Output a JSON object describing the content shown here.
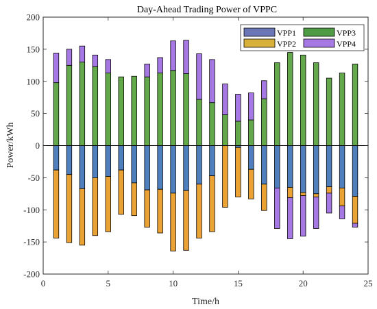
{
  "chart_data": {
    "type": "bar",
    "stacked": true,
    "title": "Day-Ahead Trading Power of VPPC",
    "xlabel": "Time/h",
    "ylabel": "Power/kWh",
    "xlim": [
      0,
      25
    ],
    "ylim": [
      -200,
      200
    ],
    "xticks": [
      0,
      5,
      10,
      15,
      20,
      25
    ],
    "yticks": [
      -200,
      -150,
      -100,
      -50,
      0,
      50,
      100,
      150,
      200
    ],
    "grid": false,
    "legend_position": "top-right",
    "x": [
      1,
      2,
      3,
      4,
      5,
      6,
      7,
      8,
      9,
      10,
      11,
      12,
      13,
      14,
      15,
      16,
      17,
      18,
      19,
      20,
      21,
      22,
      23,
      24
    ],
    "series": [
      {
        "name": "VPP1",
        "color": "#4f7fbd",
        "values": [
          -38,
          -45,
          -67,
          -50,
          -48,
          -38,
          -58,
          -69,
          -68,
          -74,
          -70,
          -60,
          -47,
          0,
          -3,
          -37,
          -60,
          -66,
          -65,
          -73,
          -75,
          -64,
          -66,
          -79
        ]
      },
      {
        "name": "VPP2",
        "color": "#eba234",
        "values": [
          -106,
          -106,
          -88,
          -90,
          -86,
          -69,
          -51,
          -58,
          -68,
          -90,
          -93,
          -84,
          -87,
          -96,
          -77,
          -46,
          -41,
          0,
          -16,
          -5,
          -5,
          -10,
          -28,
          -42
        ]
      },
      {
        "name": "VPP3",
        "color": "#63a84a",
        "values": [
          98,
          125,
          130,
          123,
          113,
          107,
          108,
          107,
          113,
          117,
          112,
          72,
          67,
          48,
          38,
          40,
          73,
          129,
          145,
          141,
          129,
          105,
          113,
          127
        ]
      },
      {
        "name": "VPP4",
        "color": "#a678e3",
        "values": [
          46,
          25,
          25,
          18,
          21,
          0,
          0,
          20,
          24,
          46,
          52,
          71,
          67,
          48,
          42,
          42,
          28,
          0,
          0,
          0,
          0,
          0,
          0,
          0
        ]
      },
      {
        "name": "VPP4-negative",
        "color": "#a678e3",
        "legend": false,
        "values": [
          0,
          0,
          0,
          0,
          0,
          0,
          0,
          0,
          0,
          0,
          0,
          0,
          0,
          0,
          0,
          0,
          0,
          -63,
          -64,
          -63,
          -49,
          -31,
          -20,
          -6
        ]
      }
    ],
    "legend": [
      {
        "name": "VPP1",
        "color": "#6a76b5"
      },
      {
        "name": "VPP3",
        "color": "#4f9a45"
      },
      {
        "name": "VPP2",
        "color": "#d8b13a"
      },
      {
        "name": "VPP4",
        "color": "#a678e3"
      }
    ]
  }
}
